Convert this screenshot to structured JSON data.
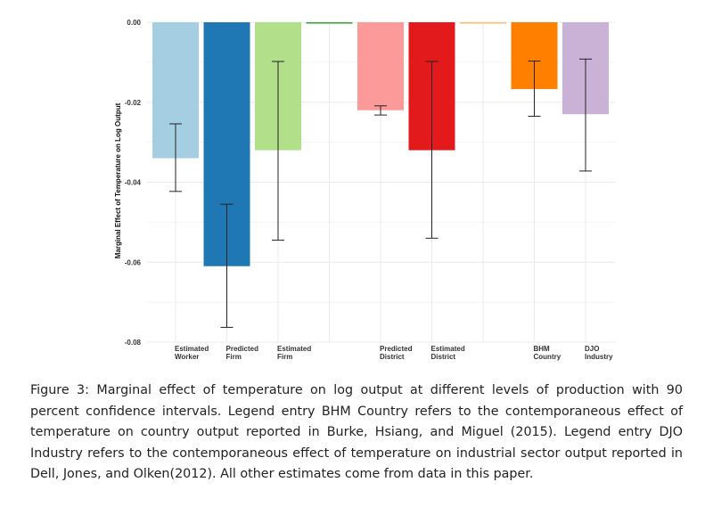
{
  "chart_data": {
    "type": "bar",
    "title": "",
    "xlabel": "",
    "ylabel": "Marginal Effect of Temperature on Log Output",
    "ylim": [
      -0.08,
      0.0
    ],
    "yticks": [
      0.0,
      -0.02,
      -0.04,
      -0.06,
      -0.08
    ],
    "ytick_labels": [
      "0.00",
      "-0.02",
      "-0.04",
      "-0.06",
      "-0.08"
    ],
    "grid": true,
    "legend": "none",
    "categories": [
      {
        "line1": "Estimated",
        "line2": "Worker"
      },
      {
        "line1": "Predicted",
        "line2": "Firm"
      },
      {
        "line1": "Estimated",
        "line2": "Firm"
      },
      {
        "line1": "",
        "line2": ""
      },
      {
        "line1": "Predicted",
        "line2": "District"
      },
      {
        "line1": "Estimated",
        "line2": "District"
      },
      {
        "line1": "",
        "line2": ""
      },
      {
        "line1": "BHM",
        "line2": "Country"
      },
      {
        "line1": "DJO",
        "line2": "Industry"
      }
    ],
    "values": [
      -0.034,
      -0.061,
      -0.032,
      0.0,
      -0.022,
      -0.032,
      0.0,
      -0.0167,
      -0.023
    ],
    "ci_low": [
      -0.0423,
      -0.0763,
      -0.0545,
      null,
      -0.0232,
      -0.054,
      null,
      -0.0235,
      -0.0372
    ],
    "ci_high": [
      -0.0254,
      -0.0455,
      -0.0098,
      null,
      -0.0209,
      -0.0098,
      null,
      -0.0097,
      -0.0092
    ],
    "colors": [
      "#a6cee3",
      "#1f78b4",
      "#b2df8a",
      "#33a02c",
      "#fb9a99",
      "#e31a1c",
      "#fdbf6f",
      "#ff7f00",
      "#cab2d6"
    ]
  },
  "caption": "Figure 3: Marginal effect of temperature on log output at different levels of production with 90 percent confidence intervals. Legend entry BHM Country refers to the contemporaneous effect of temperature on country output reported in Burke, Hsiang, and Miguel (2015). Legend entry DJO Industry refers to the contemporaneous effect of temperature on industrial sector output reported in Dell, Jones, and Olken(2012). All other estimates come from data in this paper."
}
